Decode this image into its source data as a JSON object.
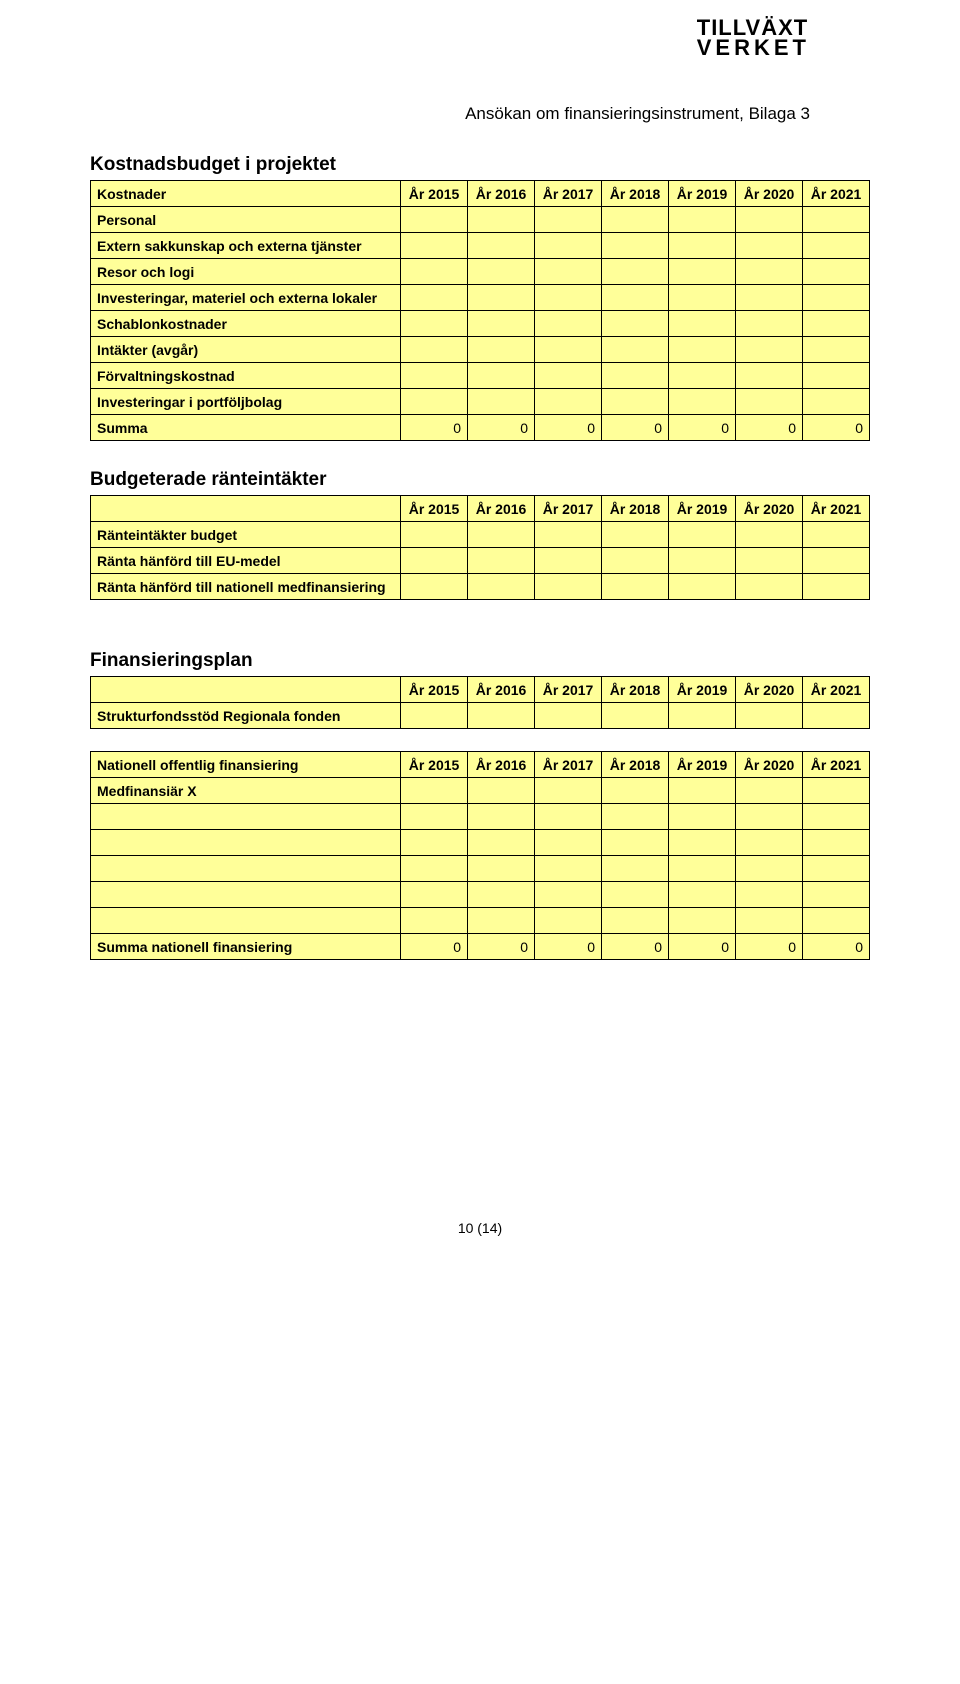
{
  "logo": {
    "line1": "TILLVÄXT",
    "line2": "VERKET"
  },
  "doc_title": "Ansökan om finansieringsinstrument, Bilaga 3",
  "years": [
    "År 2015",
    "År 2016",
    "År 2017",
    "År 2018",
    "År 2019",
    "År 2020",
    "År 2021"
  ],
  "table1": {
    "heading": "Kostnadsbudget i projektet",
    "row_header": "Kostnader",
    "rows": [
      "Personal",
      "Extern sakkunskap och externa tjänster",
      "Resor och logi",
      "Investeringar, materiel och externa lokaler",
      "Schablonkostnader",
      "Intäkter (avgår)",
      "Förvaltningskostnad",
      "Investeringar i portföljbolag"
    ],
    "sum_label": "Summa",
    "sum_values": [
      "0",
      "0",
      "0",
      "0",
      "0",
      "0",
      "0"
    ]
  },
  "table2": {
    "heading": "Budgeterade ränteintäkter",
    "rows": [
      "Ränteintäkter budget",
      "Ränta hänförd till EU-medel",
      "Ränta hänförd till nationell medfinansiering"
    ]
  },
  "table3": {
    "heading": "Finansieringsplan",
    "rows": [
      "Strukturfondsstöd Regionala fonden"
    ]
  },
  "table4": {
    "row_header": "Nationell offentlig finansiering",
    "rows": [
      "Medfinansiär X",
      "",
      "",
      "",
      "",
      ""
    ],
    "sum_label": "Summa nationell finansiering",
    "sum_values": [
      "0",
      "0",
      "0",
      "0",
      "0",
      "0",
      "0"
    ]
  },
  "page_num": "10 (14)"
}
